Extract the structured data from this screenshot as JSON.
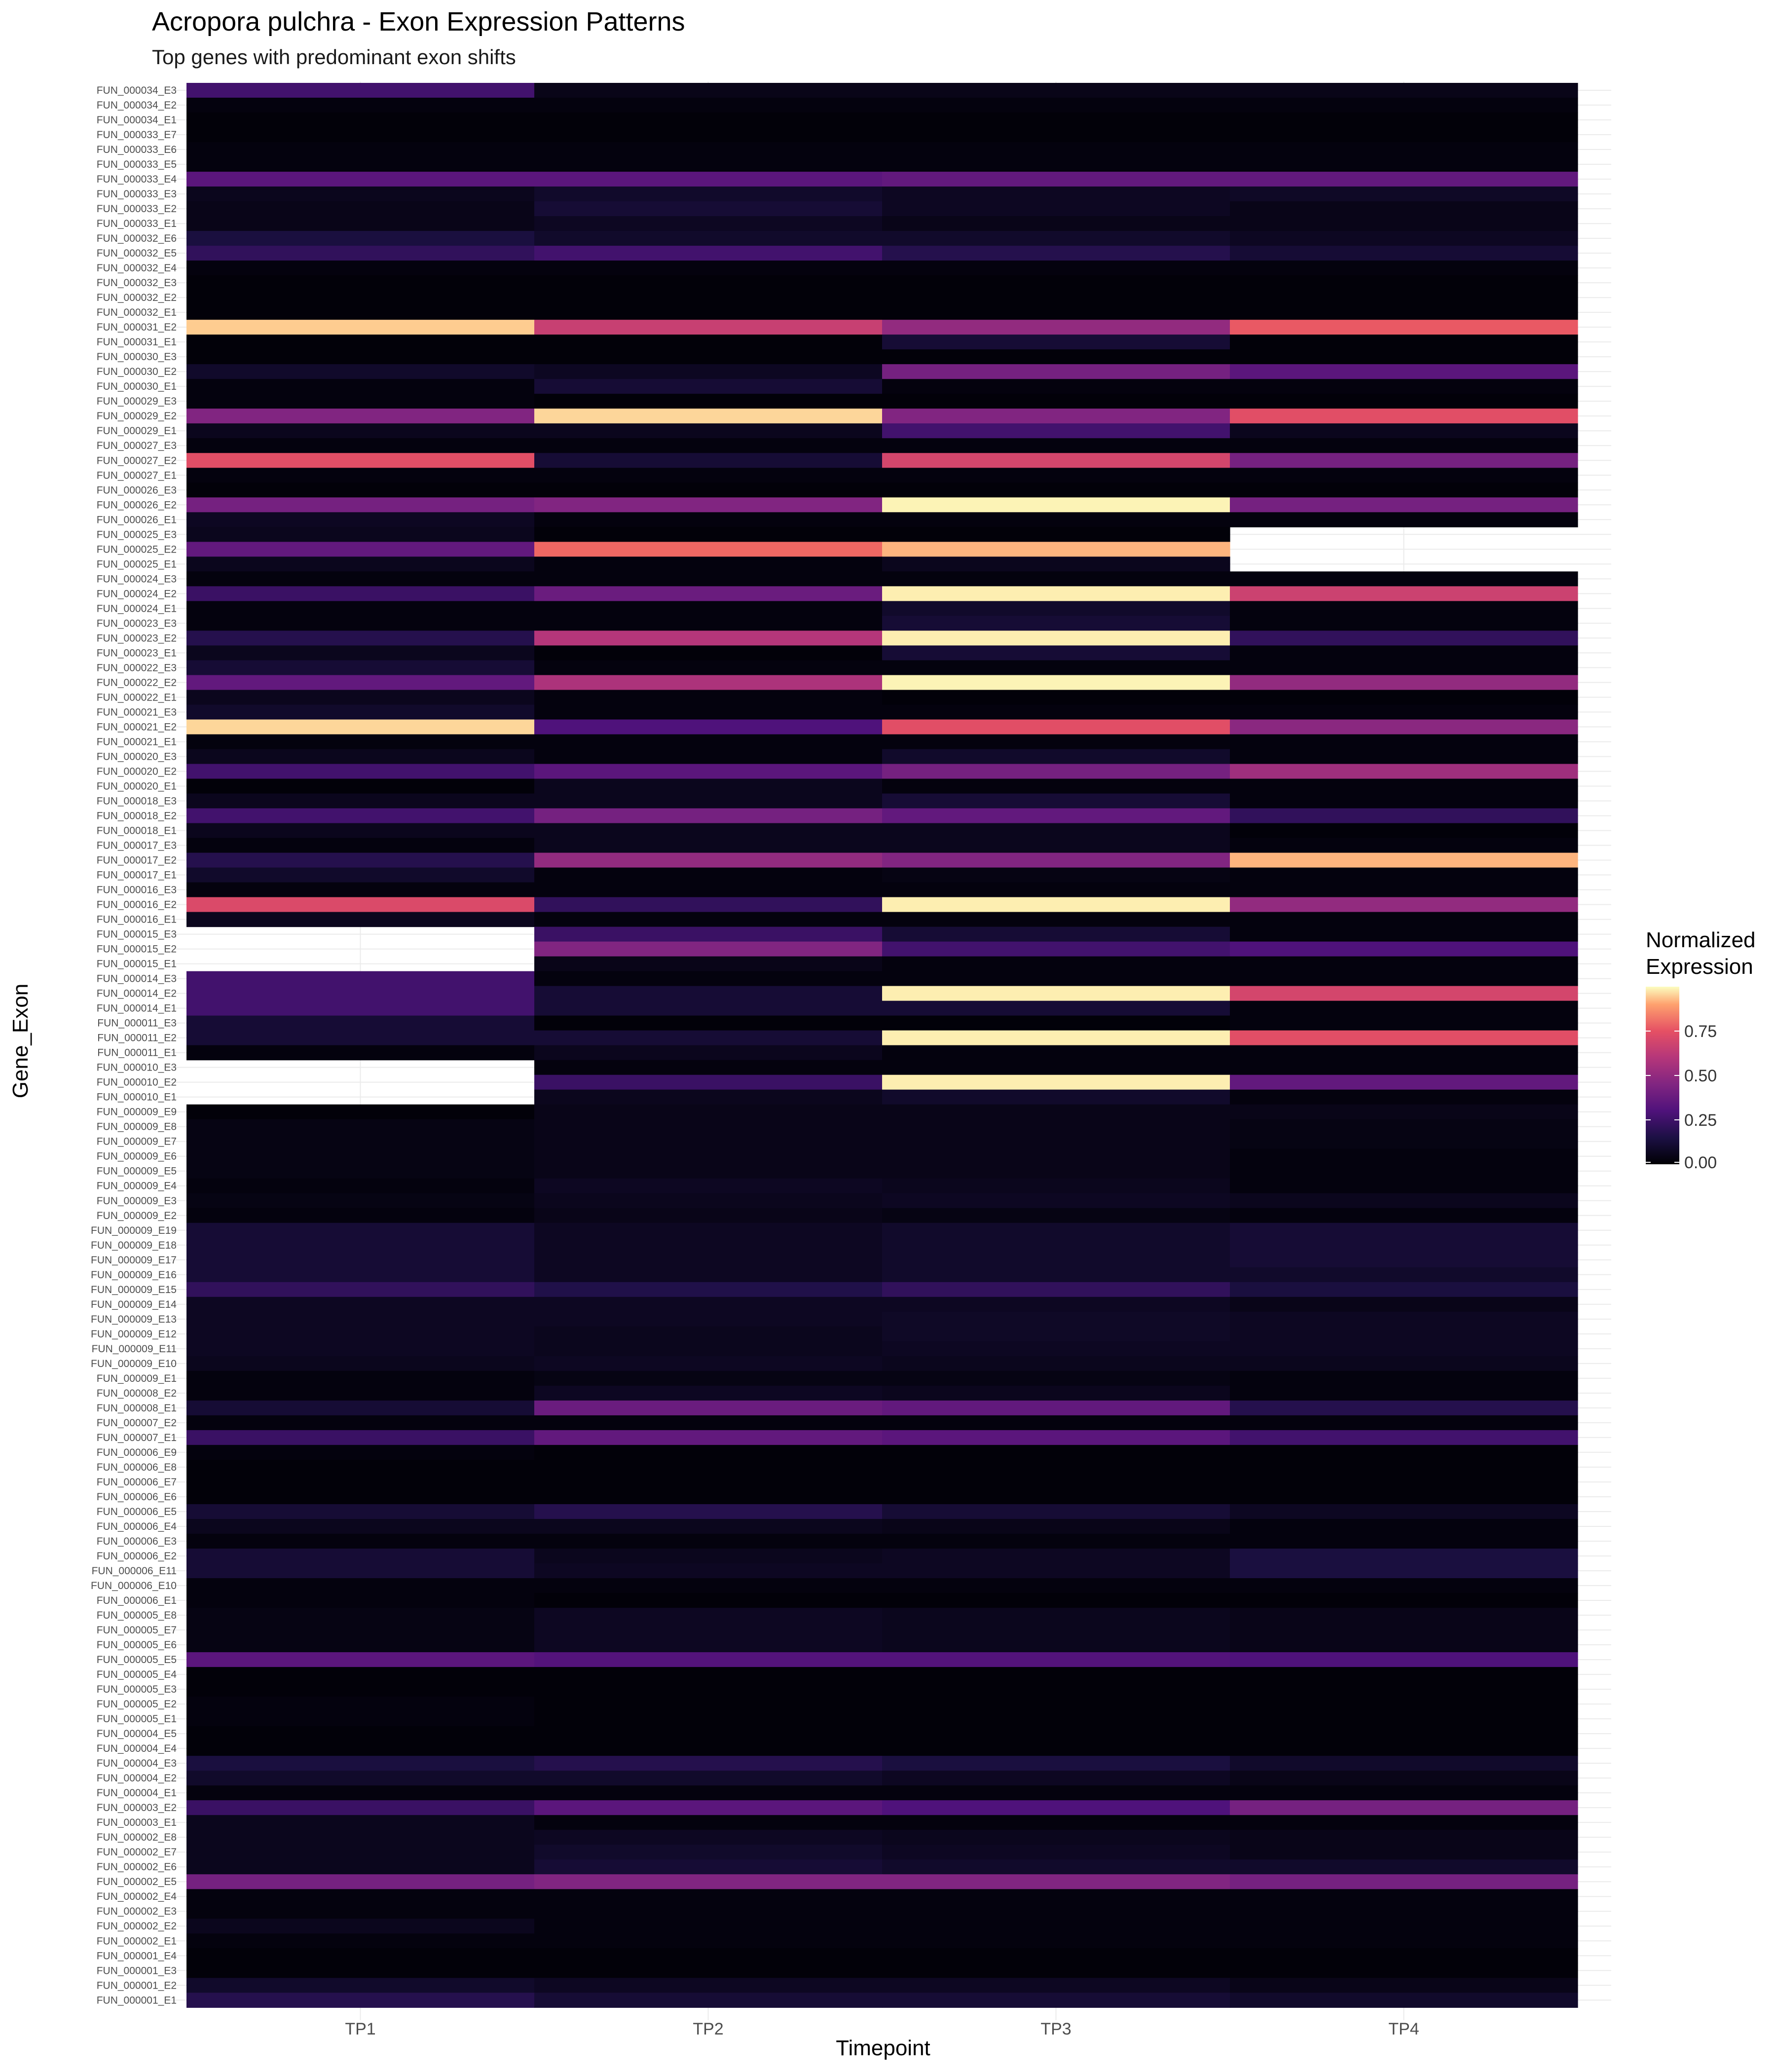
{
  "chart_data": {
    "type": "heatmap",
    "title": "Acropora pulchra - Exon Expression Patterns",
    "subtitle": "Top genes with predominant exon shifts",
    "xlabel": "Timepoint",
    "ylabel": "Gene_Exon",
    "x": [
      "TP1",
      "TP2",
      "TP3",
      "TP4"
    ],
    "y": [
      "FUN_000034_E3",
      "FUN_000034_E2",
      "FUN_000034_E1",
      "FUN_000033_E7",
      "FUN_000033_E6",
      "FUN_000033_E5",
      "FUN_000033_E4",
      "FUN_000033_E3",
      "FUN_000033_E2",
      "FUN_000033_E1",
      "FUN_000032_E6",
      "FUN_000032_E5",
      "FUN_000032_E4",
      "FUN_000032_E3",
      "FUN_000032_E2",
      "FUN_000032_E1",
      "FUN_000031_E2",
      "FUN_000031_E1",
      "FUN_000030_E3",
      "FUN_000030_E2",
      "FUN_000030_E1",
      "FUN_000029_E3",
      "FUN_000029_E2",
      "FUN_000029_E1",
      "FUN_000027_E3",
      "FUN_000027_E2",
      "FUN_000027_E1",
      "FUN_000026_E3",
      "FUN_000026_E2",
      "FUN_000026_E1",
      "FUN_000025_E3",
      "FUN_000025_E2",
      "FUN_000025_E1",
      "FUN_000024_E3",
      "FUN_000024_E2",
      "FUN_000024_E1",
      "FUN_000023_E3",
      "FUN_000023_E2",
      "FUN_000023_E1",
      "FUN_000022_E3",
      "FUN_000022_E2",
      "FUN_000022_E1",
      "FUN_000021_E3",
      "FUN_000021_E2",
      "FUN_000021_E1",
      "FUN_000020_E3",
      "FUN_000020_E2",
      "FUN_000020_E1",
      "FUN_000018_E3",
      "FUN_000018_E2",
      "FUN_000018_E1",
      "FUN_000017_E3",
      "FUN_000017_E2",
      "FUN_000017_E1",
      "FUN_000016_E3",
      "FUN_000016_E2",
      "FUN_000016_E1",
      "FUN_000015_E3",
      "FUN_000015_E2",
      "FUN_000015_E1",
      "FUN_000014_E3",
      "FUN_000014_E2",
      "FUN_000014_E1",
      "FUN_000011_E3",
      "FUN_000011_E2",
      "FUN_000011_E1",
      "FUN_000010_E3",
      "FUN_000010_E2",
      "FUN_000010_E1",
      "FUN_000009_E9",
      "FUN_000009_E8",
      "FUN_000009_E7",
      "FUN_000009_E6",
      "FUN_000009_E5",
      "FUN_000009_E4",
      "FUN_000009_E3",
      "FUN_000009_E2",
      "FUN_000009_E19",
      "FUN_000009_E18",
      "FUN_000009_E17",
      "FUN_000009_E16",
      "FUN_000009_E15",
      "FUN_000009_E14",
      "FUN_000009_E13",
      "FUN_000009_E12",
      "FUN_000009_E11",
      "FUN_000009_E10",
      "FUN_000009_E1",
      "FUN_000008_E2",
      "FUN_000008_E1",
      "FUN_000007_E2",
      "FUN_000007_E1",
      "FUN_000006_E9",
      "FUN_000006_E8",
      "FUN_000006_E7",
      "FUN_000006_E6",
      "FUN_000006_E5",
      "FUN_000006_E4",
      "FUN_000006_E3",
      "FUN_000006_E2",
      "FUN_000006_E11",
      "FUN_000006_E10",
      "FUN_000006_E1",
      "FUN_000005_E8",
      "FUN_000005_E7",
      "FUN_000005_E6",
      "FUN_000005_E5",
      "FUN_000005_E4",
      "FUN_000005_E3",
      "FUN_000005_E2",
      "FUN_000005_E1",
      "FUN_000004_E5",
      "FUN_000004_E4",
      "FUN_000004_E3",
      "FUN_000004_E2",
      "FUN_000004_E1",
      "FUN_000003_E2",
      "FUN_000003_E1",
      "FUN_000002_E8",
      "FUN_000002_E7",
      "FUN_000002_E6",
      "FUN_000002_E5",
      "FUN_000002_E4",
      "FUN_000002_E3",
      "FUN_000002_E2",
      "FUN_000002_E1",
      "FUN_000001_E4",
      "FUN_000001_E3",
      "FUN_000001_E2",
      "FUN_000001_E1"
    ],
    "values": [
      [
        0.22,
        0.04,
        0.04,
        0.04
      ],
      [
        0.02,
        0.02,
        0.02,
        0.02
      ],
      [
        0.01,
        0.01,
        0.01,
        0.01
      ],
      [
        0.01,
        0.01,
        0.01,
        0.01
      ],
      [
        0.02,
        0.02,
        0.02,
        0.02
      ],
      [
        0.02,
        0.02,
        0.02,
        0.02
      ],
      [
        0.28,
        0.28,
        0.3,
        0.3
      ],
      [
        0.05,
        0.08,
        0.06,
        0.07
      ],
      [
        0.04,
        0.1,
        0.06,
        0.04
      ],
      [
        0.04,
        0.06,
        0.04,
        0.04
      ],
      [
        0.12,
        0.08,
        0.08,
        0.06
      ],
      [
        0.18,
        0.22,
        0.15,
        0.1
      ],
      [
        0.02,
        0.02,
        0.02,
        0.02
      ],
      [
        0.01,
        0.01,
        0.01,
        0.01
      ],
      [
        0.01,
        0.01,
        0.01,
        0.01
      ],
      [
        0.01,
        0.01,
        0.01,
        0.01
      ],
      [
        0.9,
        0.55,
        0.42,
        0.65
      ],
      [
        0.01,
        0.01,
        0.1,
        0.01
      ],
      [
        0.01,
        0.01,
        0.01,
        0.01
      ],
      [
        0.08,
        0.06,
        0.35,
        0.28
      ],
      [
        0.02,
        0.1,
        0.02,
        0.02
      ],
      [
        0.02,
        0.01,
        0.01,
        0.01
      ],
      [
        0.38,
        0.92,
        0.38,
        0.62
      ],
      [
        0.05,
        0.05,
        0.22,
        0.05
      ],
      [
        0.02,
        0.02,
        0.02,
        0.02
      ],
      [
        0.62,
        0.1,
        0.58,
        0.35
      ],
      [
        0.02,
        0.02,
        0.02,
        0.02
      ],
      [
        0.01,
        0.01,
        0.01,
        0.01
      ],
      [
        0.35,
        0.38,
        0.98,
        0.35
      ],
      [
        0.06,
        0.02,
        0.02,
        0.02
      ],
      [
        0.05,
        0.01,
        0.01,
        null
      ],
      [
        0.3,
        0.68,
        0.85,
        null
      ],
      [
        0.05,
        0.02,
        0.05,
        null
      ],
      [
        0.02,
        0.02,
        0.02,
        0.02
      ],
      [
        0.2,
        0.32,
        0.97,
        0.56
      ],
      [
        0.02,
        0.02,
        0.08,
        0.02
      ],
      [
        0.02,
        0.02,
        0.1,
        0.02
      ],
      [
        0.15,
        0.5,
        0.97,
        0.18
      ],
      [
        0.05,
        0.01,
        0.1,
        0.02
      ],
      [
        0.1,
        0.02,
        0.02,
        0.02
      ],
      [
        0.3,
        0.48,
        0.98,
        0.42
      ],
      [
        0.05,
        0.02,
        0.01,
        0.01
      ],
      [
        0.08,
        0.02,
        0.02,
        0.02
      ],
      [
        0.92,
        0.25,
        0.62,
        0.4
      ],
      [
        0.02,
        0.02,
        0.02,
        0.02
      ],
      [
        0.05,
        0.02,
        0.08,
        0.02
      ],
      [
        0.22,
        0.28,
        0.35,
        0.45
      ],
      [
        0.01,
        0.05,
        0.02,
        0.02
      ],
      [
        0.05,
        0.05,
        0.1,
        0.02
      ],
      [
        0.22,
        0.35,
        0.3,
        0.18
      ],
      [
        0.05,
        0.05,
        0.05,
        0.01
      ],
      [
        0.02,
        0.05,
        0.05,
        0.02
      ],
      [
        0.15,
        0.42,
        0.38,
        0.85
      ],
      [
        0.08,
        0.02,
        0.03,
        0.02
      ],
      [
        0.02,
        0.02,
        0.02,
        0.02
      ],
      [
        0.6,
        0.18,
        0.97,
        0.42
      ],
      [
        0.05,
        0.02,
        0.02,
        0.02
      ],
      [
        null,
        0.2,
        0.1,
        0.02
      ],
      [
        null,
        0.38,
        0.22,
        0.25
      ],
      [
        null,
        0.04,
        0.02,
        0.02
      ],
      [
        0.22,
        0.02,
        0.02,
        0.02
      ],
      [
        0.22,
        0.1,
        0.97,
        0.58
      ],
      [
        0.22,
        0.1,
        0.1,
        0.02
      ],
      [
        0.1,
        0.01,
        0.01,
        0.02
      ],
      [
        0.1,
        0.1,
        0.97,
        0.62
      ],
      [
        0.02,
        0.05,
        0.02,
        0.02
      ],
      [
        null,
        0.02,
        0.02,
        0.02
      ],
      [
        null,
        0.2,
        0.97,
        0.3
      ],
      [
        null,
        0.05,
        0.08,
        0.02
      ],
      [
        0.01,
        0.04,
        0.04,
        0.04
      ],
      [
        0.03,
        0.04,
        0.04,
        0.03
      ],
      [
        0.03,
        0.04,
        0.04,
        0.03
      ],
      [
        0.03,
        0.04,
        0.04,
        0.02
      ],
      [
        0.03,
        0.04,
        0.04,
        0.02
      ],
      [
        0.02,
        0.06,
        0.05,
        0.02
      ],
      [
        0.03,
        0.05,
        0.06,
        0.05
      ],
      [
        0.02,
        0.04,
        0.03,
        0.02
      ],
      [
        0.1,
        0.06,
        0.08,
        0.1
      ],
      [
        0.1,
        0.06,
        0.08,
        0.1
      ],
      [
        0.1,
        0.06,
        0.08,
        0.1
      ],
      [
        0.1,
        0.06,
        0.08,
        0.08
      ],
      [
        0.18,
        0.14,
        0.18,
        0.12
      ],
      [
        0.06,
        0.06,
        0.06,
        0.04
      ],
      [
        0.06,
        0.06,
        0.07,
        0.06
      ],
      [
        0.06,
        0.05,
        0.07,
        0.06
      ],
      [
        0.06,
        0.05,
        0.06,
        0.06
      ],
      [
        0.05,
        0.06,
        0.05,
        0.05
      ],
      [
        0.02,
        0.03,
        0.03,
        0.02
      ],
      [
        0.02,
        0.06,
        0.05,
        0.02
      ],
      [
        0.1,
        0.32,
        0.3,
        0.15
      ],
      [
        0.02,
        0.02,
        0.02,
        0.02
      ],
      [
        0.2,
        0.3,
        0.28,
        0.22
      ],
      [
        0.02,
        0.01,
        0.01,
        0.01
      ],
      [
        0.01,
        0.01,
        0.01,
        0.01
      ],
      [
        0.01,
        0.01,
        0.01,
        0.01
      ],
      [
        0.01,
        0.01,
        0.01,
        0.01
      ],
      [
        0.1,
        0.15,
        0.1,
        0.06
      ],
      [
        0.05,
        0.05,
        0.04,
        0.02
      ],
      [
        0.02,
        0.02,
        0.02,
        0.02
      ],
      [
        0.1,
        0.05,
        0.06,
        0.12
      ],
      [
        0.1,
        0.06,
        0.06,
        0.12
      ],
      [
        0.02,
        0.02,
        0.02,
        0.02
      ],
      [
        0.02,
        0.01,
        0.01,
        0.01
      ],
      [
        0.03,
        0.06,
        0.05,
        0.04
      ],
      [
        0.03,
        0.06,
        0.05,
        0.04
      ],
      [
        0.03,
        0.06,
        0.05,
        0.04
      ],
      [
        0.28,
        0.26,
        0.26,
        0.25
      ],
      [
        0.01,
        0.01,
        0.01,
        0.01
      ],
      [
        0.01,
        0.01,
        0.01,
        0.01
      ],
      [
        0.02,
        0.01,
        0.01,
        0.01
      ],
      [
        0.02,
        0.01,
        0.01,
        0.01
      ],
      [
        0.01,
        0.01,
        0.01,
        0.01
      ],
      [
        0.01,
        0.01,
        0.01,
        0.01
      ],
      [
        0.12,
        0.15,
        0.12,
        0.08
      ],
      [
        0.08,
        0.08,
        0.06,
        0.04
      ],
      [
        0.02,
        0.02,
        0.02,
        0.02
      ],
      [
        0.2,
        0.28,
        0.25,
        0.35
      ],
      [
        0.05,
        0.02,
        0.02,
        0.02
      ],
      [
        0.05,
        0.06,
        0.05,
        0.04
      ],
      [
        0.05,
        0.08,
        0.06,
        0.04
      ],
      [
        0.05,
        0.1,
        0.08,
        0.08
      ],
      [
        0.35,
        0.38,
        0.38,
        0.35
      ],
      [
        0.02,
        0.02,
        0.02,
        0.02
      ],
      [
        0.02,
        0.02,
        0.02,
        0.02
      ],
      [
        0.05,
        0.02,
        0.02,
        0.02
      ],
      [
        0.02,
        0.02,
        0.02,
        0.02
      ],
      [
        0.01,
        0.01,
        0.01,
        0.01
      ],
      [
        0.01,
        0.01,
        0.01,
        0.01
      ],
      [
        0.08,
        0.06,
        0.06,
        0.04
      ],
      [
        0.15,
        0.1,
        0.1,
        0.08
      ]
    ],
    "missing_color": "#ffffff",
    "colorscale": "magma",
    "value_range": [
      0,
      1
    ],
    "legend": {
      "title_lines": [
        "Normalized",
        "Expression"
      ],
      "ticks": [
        0.75,
        0.5,
        0.25,
        0.0
      ],
      "tick_labels": [
        "0.75",
        "0.50",
        "0.25",
        "0.00"
      ],
      "placement": "right"
    },
    "grid": true
  }
}
